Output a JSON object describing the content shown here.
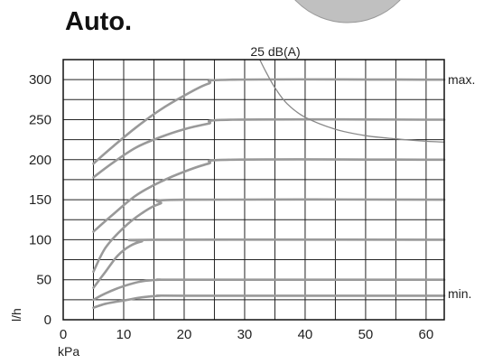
{
  "chart_data": {
    "type": "line",
    "title": "Auto.",
    "xlabel": "kPa",
    "ylabel": "l/h",
    "xlim": [
      0,
      63
    ],
    "ylim": [
      0,
      325
    ],
    "xticks": [
      0,
      10,
      20,
      30,
      40,
      50,
      60
    ],
    "yticks": [
      0,
      50,
      100,
      150,
      200,
      250,
      300
    ],
    "grid": true,
    "noise_label": "25 dB(A)",
    "series": [
      {
        "values": [
          [
            5,
            15
          ],
          [
            7,
            20
          ],
          [
            10,
            24
          ],
          [
            13,
            28
          ],
          [
            16,
            30
          ],
          [
            20,
            30
          ],
          [
            63,
            30
          ]
        ]
      },
      {
        "values": [
          [
            5,
            25
          ],
          [
            7,
            33
          ],
          [
            10,
            42
          ],
          [
            13,
            48
          ],
          [
            16,
            50
          ],
          [
            20,
            50
          ],
          [
            63,
            50
          ]
        ]
      },
      {
        "values": [
          [
            5,
            40
          ],
          [
            7,
            60
          ],
          [
            9,
            80
          ],
          [
            11,
            92
          ],
          [
            13,
            98
          ],
          [
            15,
            100
          ],
          [
            63,
            100
          ]
        ]
      },
      {
        "values": [
          [
            5,
            60
          ],
          [
            7,
            90
          ],
          [
            10,
            115
          ],
          [
            13,
            133
          ],
          [
            16,
            145
          ],
          [
            20,
            150
          ],
          [
            63,
            150
          ]
        ]
      },
      {
        "values": [
          [
            5,
            110
          ],
          [
            8,
            130
          ],
          [
            12,
            155
          ],
          [
            16,
            172
          ],
          [
            20,
            185
          ],
          [
            24,
            195
          ],
          [
            28,
            200
          ],
          [
            63,
            200
          ]
        ]
      },
      {
        "values": [
          [
            5,
            178
          ],
          [
            8,
            195
          ],
          [
            12,
            215
          ],
          [
            16,
            228
          ],
          [
            20,
            238
          ],
          [
            24,
            245
          ],
          [
            28,
            250
          ],
          [
            63,
            250
          ]
        ]
      },
      {
        "values": [
          [
            5,
            195
          ],
          [
            8,
            215
          ],
          [
            12,
            240
          ],
          [
            16,
            262
          ],
          [
            20,
            280
          ],
          [
            24,
            295
          ],
          [
            28,
            300
          ],
          [
            63,
            300
          ]
        ]
      }
    ],
    "noise_curve": [
      [
        32.5,
        325
      ],
      [
        33.5,
        310
      ],
      [
        35,
        290
      ],
      [
        37,
        270
      ],
      [
        40,
        253
      ],
      [
        45,
        238
      ],
      [
        50,
        230
      ],
      [
        55,
        226
      ],
      [
        60,
        223
      ],
      [
        63,
        222
      ]
    ],
    "annotations": [
      {
        "text": "max.",
        "x": 63,
        "y": 300
      },
      {
        "text": "min.",
        "x": 63,
        "y": 30
      }
    ]
  }
}
